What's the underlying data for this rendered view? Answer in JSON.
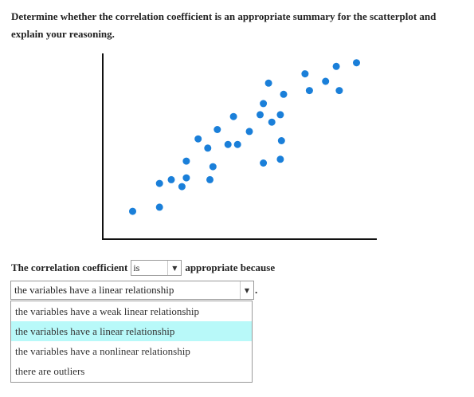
{
  "question": {
    "text": "Determine whether the correlation coefficient is an appropriate summary for the scatterplot and explain your reasoning."
  },
  "chart_data": {
    "type": "scatter",
    "title": "",
    "xlabel": "",
    "ylabel": "",
    "xlim": [
      0,
      100
    ],
    "ylim": [
      0,
      100
    ],
    "grid": false,
    "marker_color": "#1a7fd9",
    "points": [
      {
        "x": 10.9,
        "y": 15.0
      },
      {
        "x": 20.7,
        "y": 17.2
      },
      {
        "x": 20.7,
        "y": 30.0
      },
      {
        "x": 25.0,
        "y": 32.0
      },
      {
        "x": 28.9,
        "y": 28.3
      },
      {
        "x": 30.5,
        "y": 33.0
      },
      {
        "x": 30.5,
        "y": 42.0
      },
      {
        "x": 34.8,
        "y": 54.0
      },
      {
        "x": 38.3,
        "y": 49.0
      },
      {
        "x": 39.1,
        "y": 32.0
      },
      {
        "x": 40.2,
        "y": 39.0
      },
      {
        "x": 41.8,
        "y": 59.0
      },
      {
        "x": 45.7,
        "y": 51.0
      },
      {
        "x": 47.7,
        "y": 66.0
      },
      {
        "x": 49.2,
        "y": 51.0
      },
      {
        "x": 53.5,
        "y": 58.0
      },
      {
        "x": 57.4,
        "y": 67.0
      },
      {
        "x": 58.6,
        "y": 73.0
      },
      {
        "x": 58.6,
        "y": 41.0
      },
      {
        "x": 60.5,
        "y": 84.0
      },
      {
        "x": 61.7,
        "y": 63.0
      },
      {
        "x": 64.8,
        "y": 67.0
      },
      {
        "x": 64.8,
        "y": 43.0
      },
      {
        "x": 65.2,
        "y": 53.0
      },
      {
        "x": 66.0,
        "y": 78.0
      },
      {
        "x": 73.8,
        "y": 89.0
      },
      {
        "x": 75.4,
        "y": 80.0
      },
      {
        "x": 81.3,
        "y": 85.0
      },
      {
        "x": 85.2,
        "y": 93.0
      },
      {
        "x": 86.3,
        "y": 80.0
      },
      {
        "x": 92.6,
        "y": 95.0
      }
    ]
  },
  "answer": {
    "prefix": "The correlation coefficient",
    "select1_value": "is",
    "middle": "appropriate because",
    "select2_value": "the variables have a linear relationship",
    "suffix": ".",
    "arrow_glyph": "▼",
    "options": [
      "the variables have a weak linear relationship",
      "the variables have a linear relationship",
      "the variables have a nonlinear relationship",
      "there are outliers"
    ],
    "highlighted_index": 1,
    "highlight_color": "#b8f9f9"
  }
}
